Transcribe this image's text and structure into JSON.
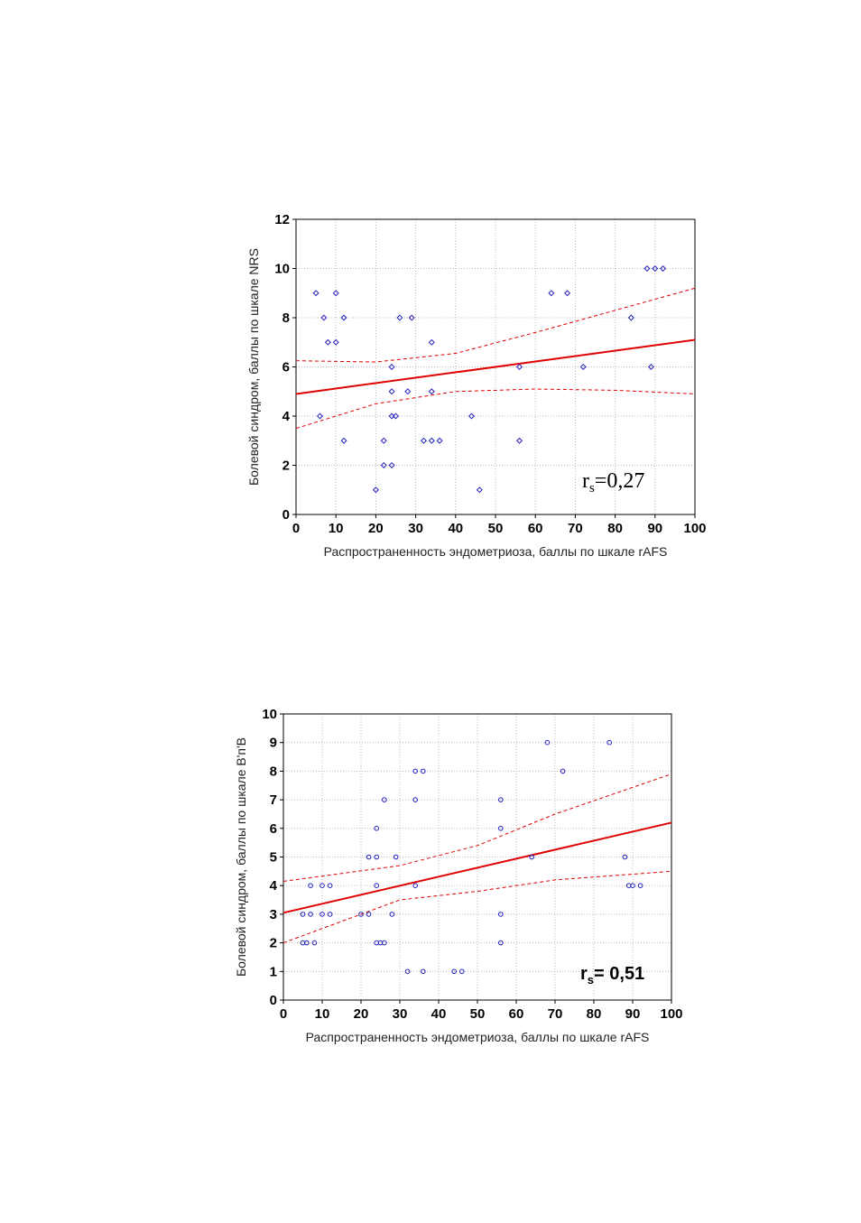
{
  "chart_data": [
    {
      "type": "scatter",
      "marker": "diamond",
      "marker_color": "#2020c0",
      "grid": true,
      "x_label": "Распространенность эндометриоза, баллы по шкале rAFS",
      "y_label": "Болевой синдром, баллы по шкале NRS",
      "annotation": {
        "main": "r",
        "subscript": "s",
        "rest": "=0,27",
        "font": "serif"
      },
      "xlim": [
        0,
        100
      ],
      "xticks": [
        0,
        10,
        20,
        30,
        40,
        50,
        60,
        70,
        80,
        90,
        100
      ],
      "ylim": [
        0,
        12
      ],
      "yticks": [
        0,
        2,
        4,
        6,
        8,
        10,
        12
      ],
      "x": [
        5,
        6,
        7,
        8,
        10,
        10,
        12,
        12,
        20,
        22,
        22,
        24,
        24,
        24,
        24,
        25,
        26,
        28,
        29,
        32,
        34,
        34,
        34,
        36,
        44,
        46,
        56,
        56,
        64,
        68,
        72,
        84,
        88,
        89,
        90,
        92
      ],
      "values": [
        9,
        4,
        8,
        7,
        9,
        7,
        8,
        3,
        1,
        3,
        2,
        6,
        5,
        4,
        2,
        4,
        8,
        5,
        8,
        3,
        7,
        5,
        3,
        3,
        4,
        1,
        6,
        3,
        9,
        9,
        6,
        8,
        10,
        6,
        10,
        10
      ],
      "lines": [
        {
          "color": "#e00000",
          "style": "solid",
          "x": [
            0,
            100
          ],
          "values": [
            4.9,
            7.1
          ]
        },
        {
          "color": "#e00000",
          "style": "dashed",
          "x": [
            0,
            20,
            40,
            60,
            80,
            100
          ],
          "values": [
            6.25,
            6.2,
            6.55,
            7.4,
            8.3,
            9.2
          ]
        },
        {
          "color": "#e00000",
          "style": "dashed",
          "x": [
            0,
            20,
            40,
            60,
            80,
            100
          ],
          "values": [
            3.5,
            4.5,
            5.0,
            5.1,
            5.05,
            4.9
          ]
        }
      ]
    },
    {
      "type": "scatter",
      "marker": "circle",
      "marker_color": "#2020c0",
      "grid": true,
      "x_label": "Распространенность эндометриоза, баллы по шкале rAFS",
      "y_label": "Болевой синдром, баллы по шкале В'п'В",
      "annotation": {
        "main": "r",
        "subscript": "s",
        "rest": "= 0,51",
        "font": "sans-bold"
      },
      "xlim": [
        0,
        100
      ],
      "xticks": [
        0,
        10,
        20,
        30,
        40,
        50,
        60,
        70,
        80,
        90,
        100
      ],
      "ylim": [
        0,
        10
      ],
      "yticks": [
        0,
        1,
        2,
        3,
        4,
        5,
        6,
        7,
        8,
        9,
        10
      ],
      "x": [
        5,
        5,
        6,
        7,
        7,
        8,
        10,
        10,
        12,
        12,
        20,
        22,
        22,
        24,
        24,
        24,
        24,
        25,
        26,
        26,
        28,
        29,
        32,
        34,
        34,
        34,
        36,
        36,
        44,
        46,
        56,
        56,
        56,
        56,
        64,
        68,
        72,
        84,
        88,
        89,
        90,
        92
      ],
      "values": [
        3,
        2,
        2,
        4,
        3,
        2,
        4,
        3,
        4,
        3,
        3,
        5,
        3,
        6,
        5,
        4,
        2,
        2,
        7,
        2,
        3,
        5,
        1,
        8,
        7,
        4,
        8,
        1,
        1,
        1,
        7,
        6,
        3,
        2,
        5,
        9,
        8,
        9,
        5,
        4,
        4,
        4
      ],
      "lines": [
        {
          "color": "#e00000",
          "style": "solid",
          "x": [
            0,
            100
          ],
          "values": [
            3.05,
            6.2
          ]
        },
        {
          "color": "#e00000",
          "style": "dashed",
          "x": [
            0,
            30,
            50,
            70,
            100
          ],
          "values": [
            4.15,
            4.7,
            5.4,
            6.5,
            7.9
          ]
        },
        {
          "color": "#e00000",
          "style": "dashed",
          "x": [
            0,
            30,
            50,
            70,
            100
          ],
          "values": [
            2.0,
            3.5,
            3.8,
            4.2,
            4.5
          ]
        }
      ]
    }
  ]
}
